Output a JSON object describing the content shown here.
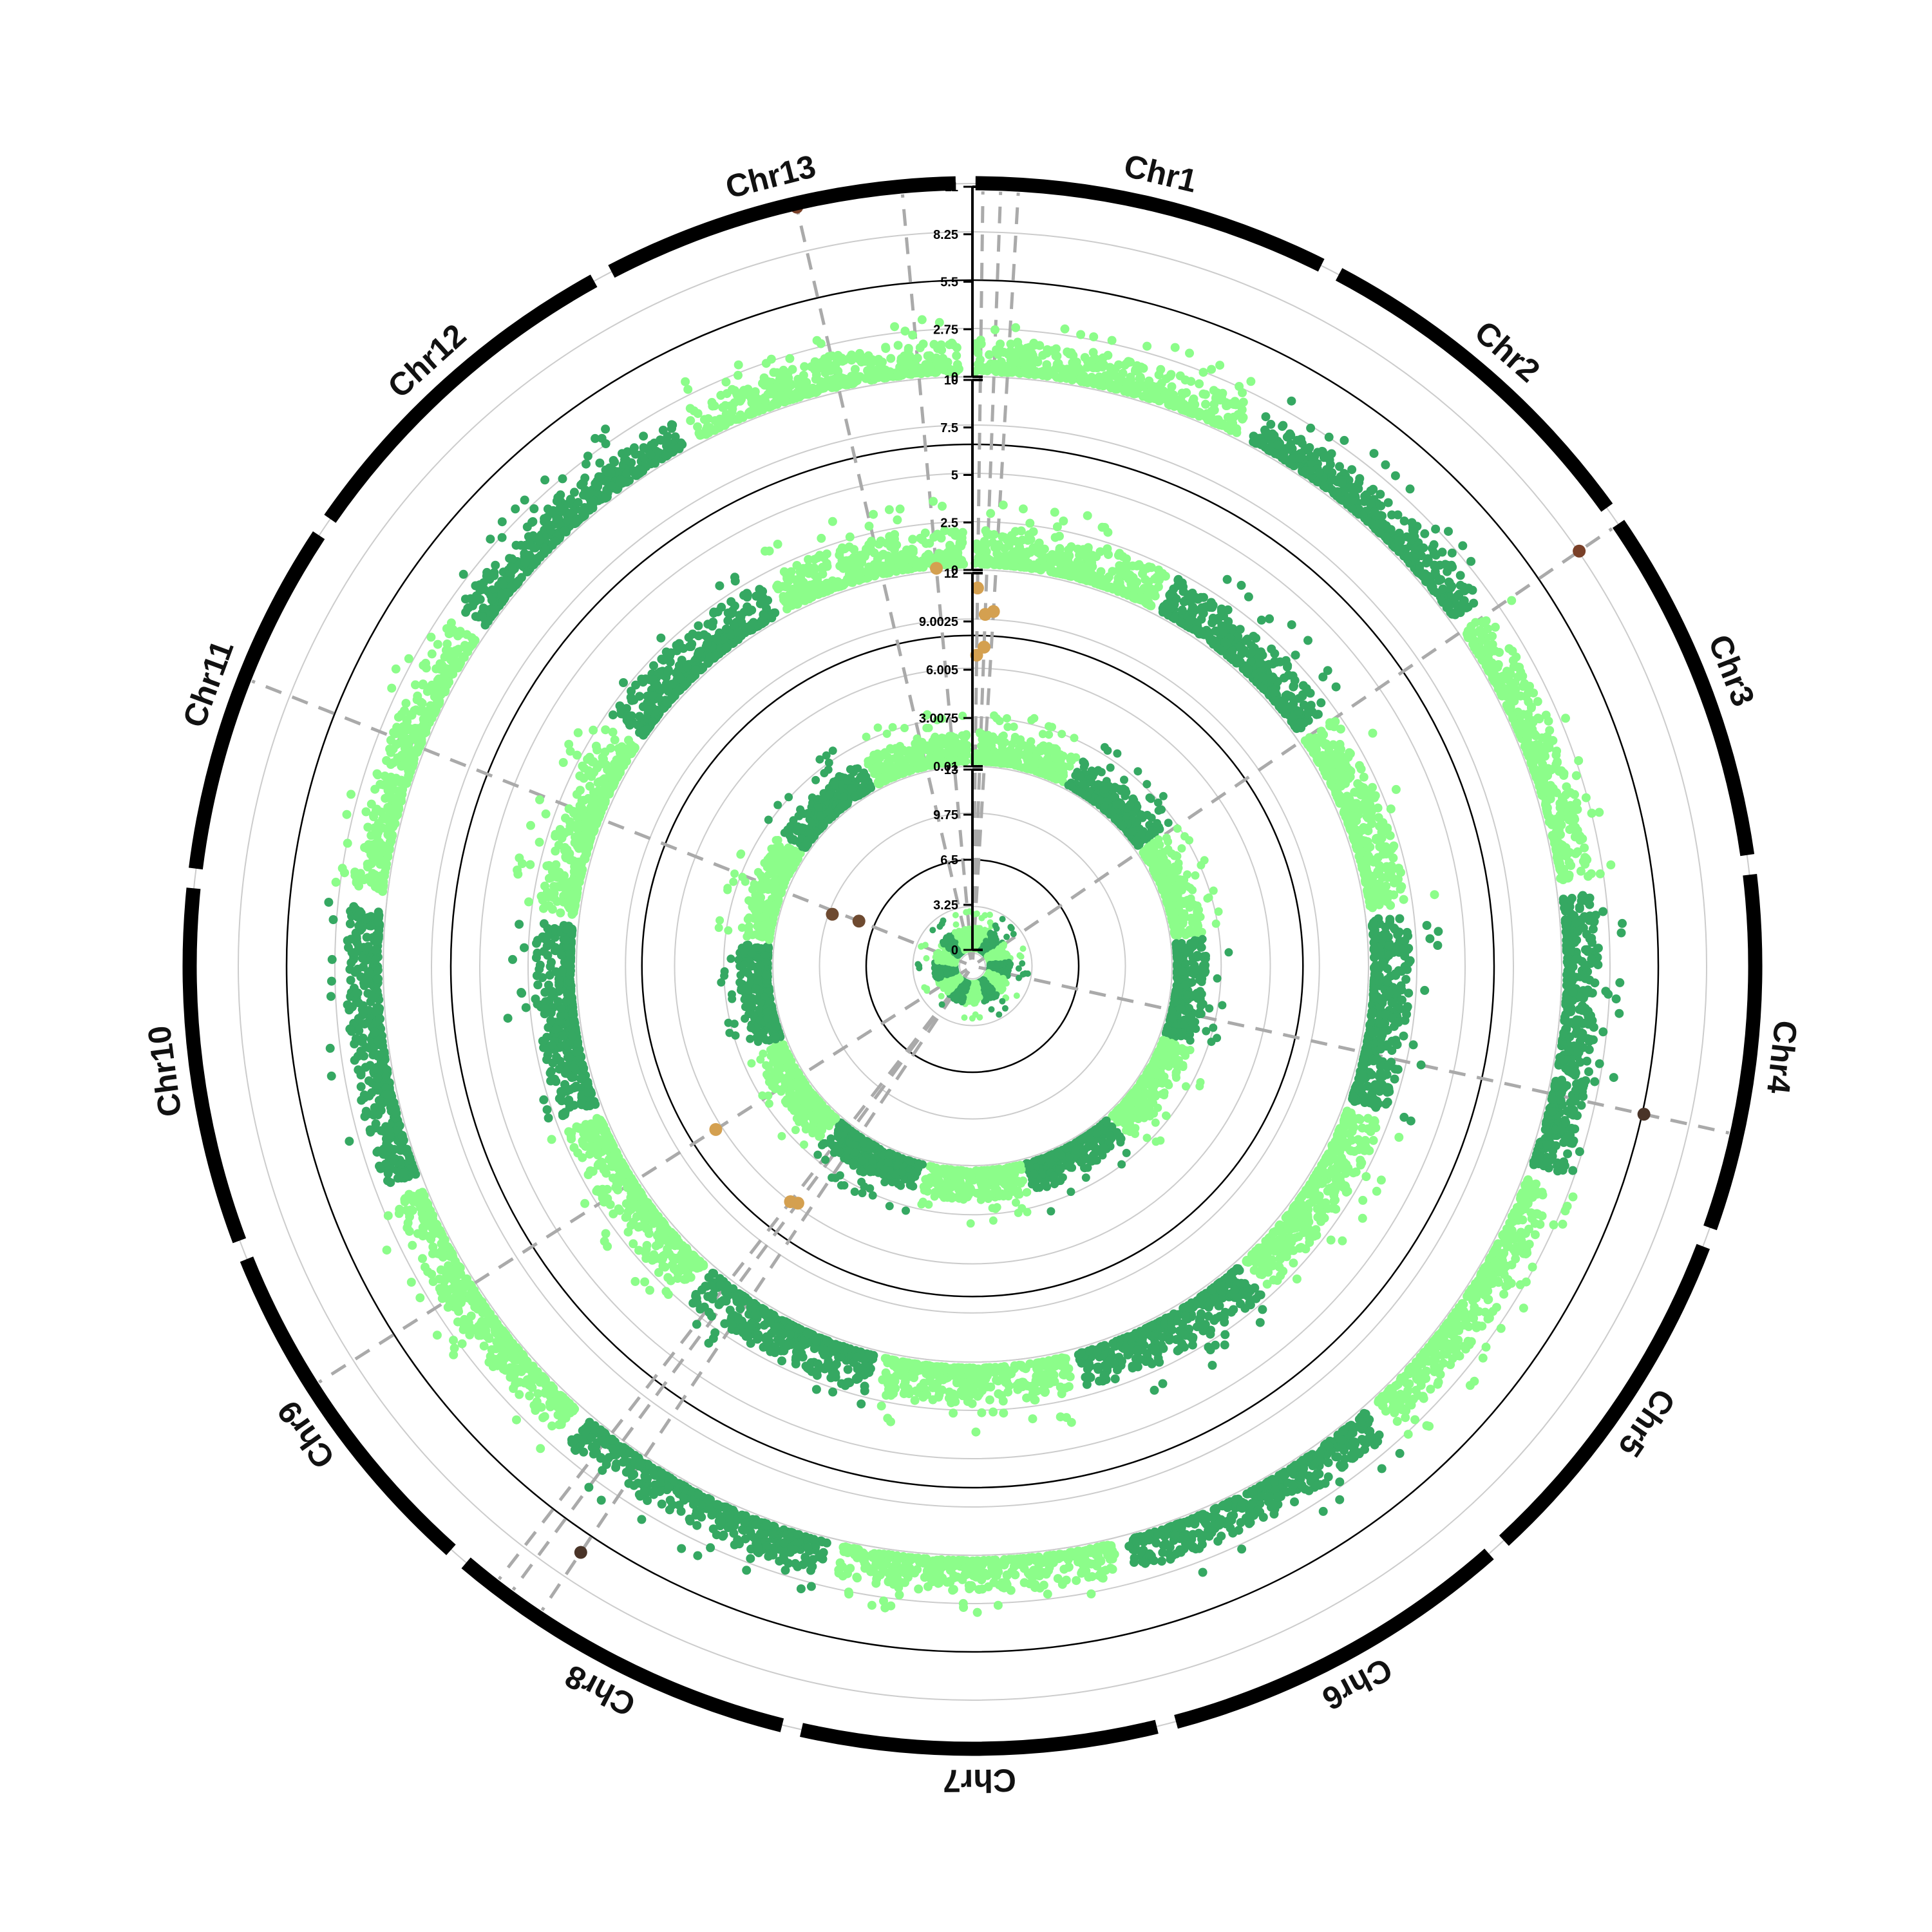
{
  "chart_data": {
    "type": "scatter",
    "subtype": "circular-manhattan",
    "title": "",
    "chromosomes": [
      "Chr1",
      "Chr2",
      "Chr3",
      "Chr4",
      "Chr5",
      "Chr6",
      "Chr7",
      "Chr8",
      "Chr9",
      "Chr10",
      "Chr11",
      "Chr12",
      "Chr13"
    ],
    "colors": {
      "light": "#8cfd8a",
      "dark": "#35a862",
      "outer_ring": "#000000",
      "guide": "#aaaaaa",
      "grid": "#cccccc",
      "threshold": "#000000"
    },
    "tracks": [
      {
        "ticks": [
          "0",
          "2.75",
          "5.5",
          "8.25",
          "11"
        ],
        "ylim": [
          0,
          11
        ],
        "threshold": 5.5,
        "baseline": 0.3,
        "spread": 1.8,
        "significant_points": [
          {
            "chr": "Chr13",
            "pos": 0.55,
            "value": 10.8,
            "color": "#7a4028"
          },
          {
            "chr": "Chr3",
            "pos": 0.0,
            "value": 8.3,
            "color": "#7a4028"
          },
          {
            "chr": "Chr4",
            "pos": 0.73,
            "value": 5.6,
            "color": "#4a3428"
          },
          {
            "chr": "Chr8",
            "pos": 0.75,
            "value": 6.6,
            "color": "#4a3428"
          }
        ]
      },
      {
        "ticks": [
          "0",
          "2.5",
          "5",
          "7.5",
          "10"
        ],
        "ylim": [
          0,
          10
        ],
        "threshold": 6.5,
        "baseline": 0.3,
        "spread": 1.9,
        "significant_points": []
      },
      {
        "ticks": [
          "0.01",
          "3.0075",
          "6.005",
          "9.0025",
          "12"
        ],
        "ylim": [
          0.01,
          12
        ],
        "threshold": 8.0,
        "baseline": 0.3,
        "spread": 1.8,
        "significant_points": [
          {
            "chr": "Chr13",
            "pos": 0.85,
            "value": 12.2,
            "color": "#d4a050"
          },
          {
            "chr": "Chr1",
            "pos": 0.02,
            "value": 10.9,
            "color": "#d4a050"
          },
          {
            "chr": "Chr1",
            "pos": 0.07,
            "value": 9.3,
            "color": "#d4a050"
          },
          {
            "chr": "Chr1",
            "pos": 0.12,
            "value": 9.5,
            "color": "#d4a050"
          },
          {
            "chr": "Chr1",
            "pos": 0.02,
            "value": 6.8,
            "color": "#d4a050"
          },
          {
            "chr": "Chr1",
            "pos": 0.07,
            "value": 7.3,
            "color": "#d4a050"
          },
          {
            "chr": "Chr9",
            "pos": 0.6,
            "value": 6.4,
            "color": "#d4a050"
          },
          {
            "chr": "Chr8",
            "pos": 0.85,
            "value": 5.8,
            "color": "#d4a050"
          },
          {
            "chr": "Chr8",
            "pos": 0.9,
            "value": 6.0,
            "color": "#d4a050"
          }
        ]
      },
      {
        "ticks": [
          "0",
          "3.25",
          "6.5",
          "9.75",
          "13"
        ],
        "ylim": [
          0,
          13
        ],
        "threshold": 6.5,
        "baseline": 0.3,
        "spread": 1.5,
        "significant_points": [
          {
            "chr": "Chr11",
            "pos": 0.5,
            "value": 9.5,
            "color": "#6e4a30"
          },
          {
            "chr": "Chr11",
            "pos": 0.55,
            "value": 7.6,
            "color": "#6e4a30"
          }
        ]
      }
    ],
    "highlight_loci": [
      {
        "chr": "Chr13",
        "pos": 0.55
      },
      {
        "chr": "Chr13",
        "pos": 0.85
      },
      {
        "chr": "Chr1",
        "pos": 0.02
      },
      {
        "chr": "Chr1",
        "pos": 0.07
      },
      {
        "chr": "Chr1",
        "pos": 0.12
      },
      {
        "chr": "Chr3",
        "pos": 0.0
      },
      {
        "chr": "Chr4",
        "pos": 0.73
      },
      {
        "chr": "Chr8",
        "pos": 0.75
      },
      {
        "chr": "Chr8",
        "pos": 0.85
      },
      {
        "chr": "Chr8",
        "pos": 0.9
      },
      {
        "chr": "Chr9",
        "pos": 0.6
      },
      {
        "chr": "Chr11",
        "pos": 0.55
      }
    ],
    "grid": true,
    "legend": "none"
  }
}
